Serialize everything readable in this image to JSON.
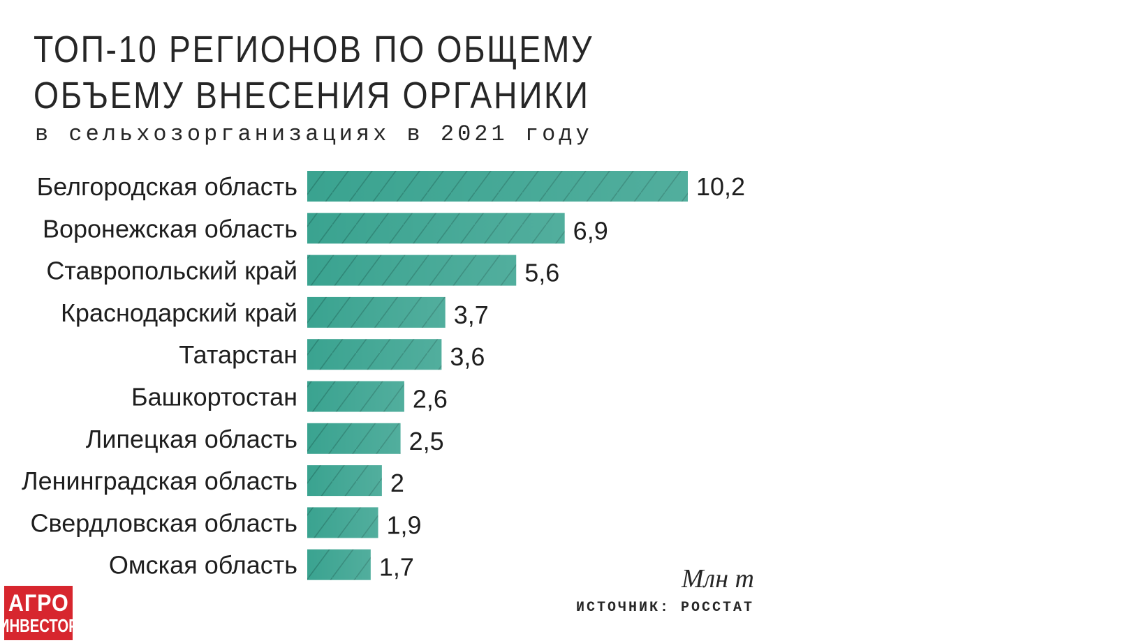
{
  "header": {
    "title_line1": "ТОП-10 РЕГИОНОВ ПО ОБЩЕМУ",
    "title_line2": "ОБЪЕМУ ВНЕСЕНИЯ ОРГАНИКИ",
    "subtitle": "в сельхозорганизациях в 2021 году"
  },
  "footer": {
    "unit": "Млн т",
    "source": "ИСТОЧНИК: РОССТАТ"
  },
  "logo": {
    "line1": "АГРО",
    "line2": "ИНВЕСТОР",
    "color": "#d7262e"
  },
  "colors": {
    "bar": "#3aa390",
    "bar_hatch": "#2c8575"
  },
  "chart_data": {
    "type": "bar",
    "orientation": "horizontal",
    "categories": [
      "Белгородская область",
      "Воронежская область",
      "Ставропольский край",
      "Краснодарский край",
      "Татарстан",
      "Башкортостан",
      "Липецкая область",
      "Ленинградская область",
      "Свердловская область",
      "Омская область"
    ],
    "values": [
      10.2,
      6.9,
      5.6,
      3.7,
      3.6,
      2.6,
      2.5,
      2,
      1.9,
      1.7
    ],
    "value_labels": [
      "10,2",
      "6,9",
      "5,6",
      "3,7",
      "3,6",
      "2,6",
      "2,5",
      "2",
      "1,9",
      "1,7"
    ],
    "title": "ТОП-10 РЕГИОНОВ ПО ОБЩЕМУ ОБЪЕМУ ВНЕСЕНИЯ ОРГАНИКИ",
    "subtitle": "в сельхозорганизациях в 2021 году",
    "unit": "Млн т",
    "xlim": [
      0,
      10.2
    ],
    "grid": false,
    "legend": "none"
  }
}
